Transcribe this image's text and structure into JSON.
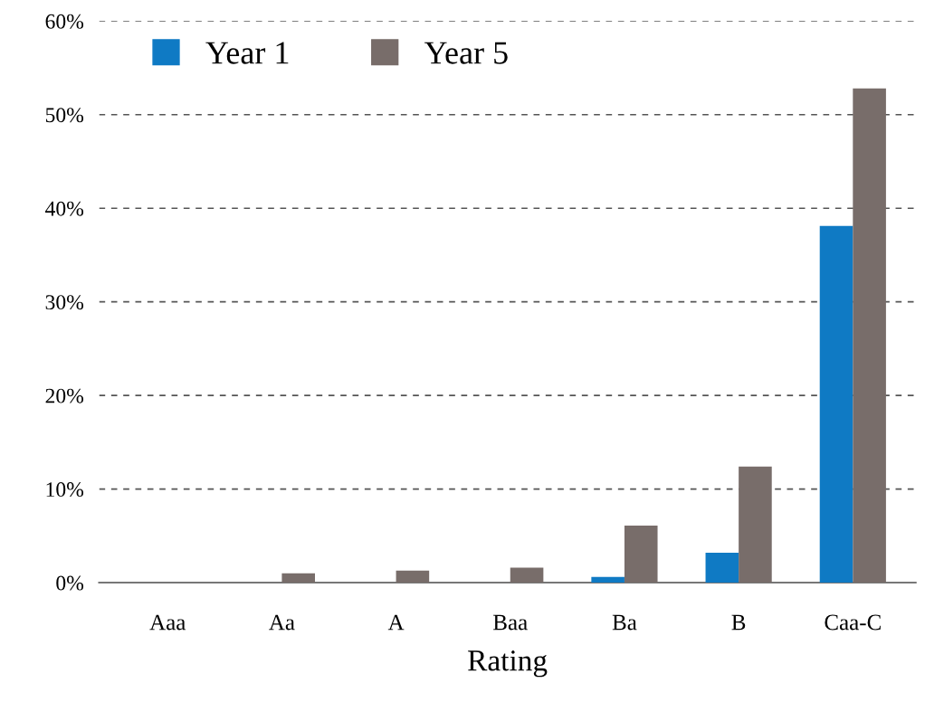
{
  "chart_data": {
    "type": "bar",
    "xlabel": "Rating",
    "categories": [
      "Aaa",
      "Aa",
      "A",
      "Baa",
      "Ba",
      "B",
      "Caa-C"
    ],
    "series": [
      {
        "name": "Year 1",
        "color": "#0f7ac4",
        "values": [
          0,
          0,
          0,
          0,
          0.6,
          3.2,
          38.1
        ]
      },
      {
        "name": "Year 5",
        "color": "#786d6a",
        "values": [
          0,
          1.0,
          1.3,
          1.6,
          6.1,
          12.4,
          52.8
        ]
      }
    ],
    "ylim": [
      0,
      60
    ],
    "yticks": [
      {
        "value": 0,
        "label": "0%"
      },
      {
        "value": 10,
        "label": "10%"
      },
      {
        "value": 20,
        "label": "20%"
      },
      {
        "value": 30,
        "label": "30%"
      },
      {
        "value": 40,
        "label": "40%"
      },
      {
        "value": 50,
        "label": "50%"
      },
      {
        "value": 60,
        "label": "60%"
      }
    ],
    "grid": "y",
    "line_style": "dashed",
    "legend": "top left"
  }
}
